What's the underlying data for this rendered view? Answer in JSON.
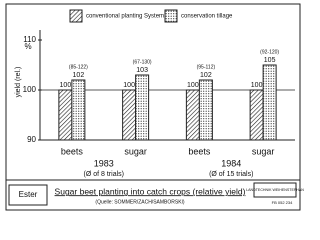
{
  "chart_data": {
    "type": "bar",
    "y_label": "yield (rel.)",
    "y_unit": "%",
    "categories": [
      "beets",
      "sugar",
      "beets",
      "sugar"
    ],
    "groups": [
      "1983",
      "1984"
    ],
    "group_notes": [
      "(Ø of 8 trials)",
      "(Ø of 15 trials)"
    ],
    "series": [
      {
        "name": "conventional planting System",
        "pattern": "hatch",
        "values": [
          100,
          100,
          100,
          100
        ]
      },
      {
        "name": "conservation tillage",
        "pattern": "dots",
        "values": [
          102,
          103,
          102,
          105
        ],
        "ranges": [
          "(85-122)",
          "(67-130)",
          "(95-112)",
          "(92-120)"
        ]
      }
    ],
    "ylim": [
      90,
      112
    ],
    "yticks": [
      90,
      100,
      110
    ],
    "reference_line": 100
  },
  "footer": {
    "author": "Ester",
    "title": "Sugar beet planting into catch crops (relative yield)",
    "source": "(Quelle: SOMMER/ZACH/SAMBORSKI)",
    "logo": "LANDTECHNIK WEIHENSTEPHAN",
    "code": "FB 052 234"
  }
}
